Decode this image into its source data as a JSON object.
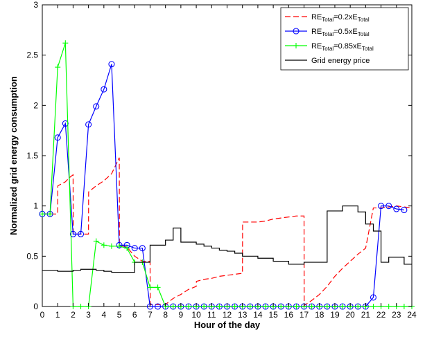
{
  "chart_data": {
    "type": "line",
    "title": "",
    "xlabel": "Hour of the day",
    "ylabel": "Normalized grid energy consumption",
    "xlim": [
      0,
      24
    ],
    "ylim": [
      0,
      3
    ],
    "xticks": [
      "0",
      "1",
      "2",
      "3",
      "4",
      "5",
      "6",
      "7",
      "8",
      "9",
      "10",
      "11",
      "12",
      "13",
      "14",
      "15",
      "16",
      "17",
      "18",
      "19",
      "20",
      "21",
      "22",
      "23",
      "24"
    ],
    "yticks": [
      "0",
      "0.5",
      "1",
      "1.5",
      "2",
      "2.5",
      "3"
    ],
    "grid": false,
    "legend_position": "top-right",
    "legend": [
      {
        "pre": "RE",
        "sub": "Total",
        "mid": "=0.2xE",
        "sub2": "Total",
        "color": "#ff0000",
        "style": "dashed",
        "marker": "none"
      },
      {
        "pre": "RE",
        "sub": "Total",
        "mid": "=0.5xE",
        "sub2": "Total",
        "color": "#0000ff",
        "style": "solid",
        "marker": "circle"
      },
      {
        "pre": "RE",
        "sub": "Total",
        "mid": "=0.85xE",
        "sub2": "Total",
        "color": "#00ff00",
        "style": "solid",
        "marker": "plus"
      },
      {
        "pre": "Grid energy price",
        "sub": "",
        "mid": "",
        "sub2": "",
        "color": "#000000",
        "style": "solid",
        "marker": "none"
      }
    ],
    "series": [
      {
        "color": "#ff0000",
        "style": "dashed",
        "marker": "none",
        "x": [
          0,
          0.5,
          1,
          1.01,
          1.5,
          1.75,
          2,
          2.01,
          2.5,
          2.75,
          3,
          3.01,
          3.5,
          4,
          4.5,
          5,
          5.01,
          5.5,
          6,
          6.5,
          7,
          7.01,
          7.5,
          8,
          8.5,
          9,
          9.5,
          10,
          10.01,
          10.5,
          11,
          11.5,
          12,
          12.5,
          13,
          13.01,
          13.5,
          14,
          14.5,
          15,
          15.5,
          16,
          16.5,
          17,
          17.01,
          17.5,
          18,
          18.5,
          19,
          19.5,
          20,
          20.5,
          21,
          21.5,
          22,
          22.5,
          23,
          23.5,
          24
        ],
        "y": [
          0.92,
          0.92,
          0.92,
          1.2,
          1.24,
          1.28,
          1.31,
          0.72,
          0.72,
          0.72,
          0.72,
          1.14,
          1.2,
          1.25,
          1.32,
          1.48,
          0.61,
          0.59,
          0.5,
          0.45,
          0.45,
          0.02,
          0.02,
          0.02,
          0.08,
          0.12,
          0.17,
          0.2,
          0.25,
          0.27,
          0.28,
          0.3,
          0.31,
          0.32,
          0.33,
          0.84,
          0.84,
          0.84,
          0.85,
          0.87,
          0.88,
          0.89,
          0.9,
          0.9,
          0.01,
          0.06,
          0.12,
          0.2,
          0.3,
          0.38,
          0.45,
          0.52,
          0.58,
          0.98,
          0.98,
          0.99,
          1.0,
          0.99,
          0.98
        ]
      },
      {
        "color": "#0000ff",
        "style": "solid",
        "marker": "circle",
        "x": [
          0,
          0.5,
          1,
          1.5,
          2,
          2.5,
          3,
          3.5,
          4,
          4.5,
          5,
          5.5,
          6,
          6.5,
          7,
          7.5,
          8,
          8.5,
          9,
          9.5,
          10,
          10.5,
          11,
          11.5,
          12,
          12.5,
          13,
          13.5,
          14,
          14.5,
          15,
          15.5,
          16,
          16.5,
          17,
          17.5,
          18,
          18.5,
          19,
          19.5,
          20,
          20.5,
          21,
          21.5,
          22,
          22.5,
          23,
          23.5
        ],
        "y": [
          0.92,
          0.92,
          1.68,
          1.82,
          0.72,
          0.72,
          1.81,
          1.99,
          2.16,
          2.41,
          0.61,
          0.61,
          0.58,
          0.58,
          0,
          0,
          0,
          0,
          0,
          0,
          0,
          0,
          0,
          0,
          0,
          0,
          0,
          0,
          0,
          0,
          0,
          0,
          0,
          0,
          0,
          0,
          0,
          0,
          0,
          0,
          0,
          0,
          0,
          0.09,
          1.0,
          1.0,
          0.97,
          0.96
        ]
      },
      {
        "color": "#00ff00",
        "style": "solid",
        "marker": "plus",
        "x": [
          0,
          0.5,
          1,
          1.5,
          2,
          2.5,
          3,
          3.5,
          4,
          4.5,
          5,
          5.5,
          6,
          6.5,
          7,
          7.5,
          8,
          8.5,
          9,
          9.5,
          10,
          10.5,
          11,
          11.5,
          12,
          12.5,
          13,
          13.5,
          14,
          14.5,
          15,
          15.5,
          16,
          16.5,
          17,
          17.5,
          18,
          18.5,
          19,
          19.5,
          20,
          20.5,
          21,
          21.5,
          22,
          22.5,
          23,
          23.5,
          24
        ],
        "y": [
          0.92,
          0.92,
          2.38,
          2.62,
          0,
          0,
          0,
          0.65,
          0.61,
          0.6,
          0.6,
          0.58,
          0.44,
          0.44,
          0.19,
          0.19,
          0,
          0,
          0,
          0,
          0,
          0,
          0,
          0,
          0,
          0,
          0,
          0,
          0,
          0,
          0,
          0,
          0,
          0,
          0,
          0,
          0,
          0,
          0,
          0,
          0,
          0,
          0,
          0,
          0,
          0,
          0,
          0,
          0
        ]
      },
      {
        "color": "#000000",
        "style": "step",
        "marker": "none",
        "x": [
          0,
          0.5,
          1,
          1.5,
          2,
          2.5,
          3,
          3.5,
          4,
          4.5,
          5,
          5.5,
          6,
          6.5,
          7,
          7.5,
          8,
          8.5,
          9,
          9.5,
          10,
          10.5,
          11,
          11.5,
          12,
          12.5,
          13,
          13.5,
          14,
          14.5,
          15,
          15.5,
          16,
          16.5,
          17,
          17.5,
          18,
          18.5,
          19,
          19.5,
          20,
          20.5,
          21,
          21.5,
          22,
          22.5,
          23,
          23.5,
          24
        ],
        "y": [
          0.36,
          0.36,
          0.35,
          0.35,
          0.36,
          0.37,
          0.37,
          0.36,
          0.35,
          0.34,
          0.34,
          0.34,
          0.44,
          0.44,
          0.61,
          0.61,
          0.66,
          0.78,
          0.64,
          0.64,
          0.62,
          0.6,
          0.58,
          0.56,
          0.55,
          0.53,
          0.5,
          0.5,
          0.48,
          0.48,
          0.45,
          0.45,
          0.42,
          0.42,
          0.44,
          0.44,
          0.44,
          0.95,
          0.95,
          1.0,
          1.0,
          0.94,
          0.82,
          0.75,
          0.44,
          0.49,
          0.49,
          0.42,
          0.42
        ]
      }
    ]
  }
}
